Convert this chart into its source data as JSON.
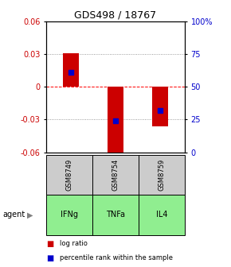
{
  "title": "GDS498 / 18767",
  "samples": [
    "GSM8749",
    "GSM8754",
    "GSM8759"
  ],
  "agents": [
    "IFNg",
    "TNFa",
    "IL4"
  ],
  "bar_values": [
    0.031,
    -0.065,
    -0.036
  ],
  "percentile_values": [
    0.013,
    -0.031,
    -0.022
  ],
  "ylim_left": [
    -0.06,
    0.06
  ],
  "yticks_left": [
    -0.06,
    -0.03,
    0,
    0.03,
    0.06
  ],
  "ytick_labels_left": [
    "-0.06",
    "-0.03",
    "0",
    "0.03",
    "0.06"
  ],
  "yticks_right_pct": [
    0,
    25,
    50,
    75,
    100
  ],
  "ytick_labels_right": [
    "0",
    "25",
    "50",
    "75",
    "100%"
  ],
  "bar_color": "#cc0000",
  "percentile_color": "#0000cc",
  "agent_color": "#90ee90",
  "sample_color": "#cccccc",
  "bar_width": 0.35,
  "title_fontsize": 9,
  "tick_fontsize": 7,
  "table_fontsize": 7
}
